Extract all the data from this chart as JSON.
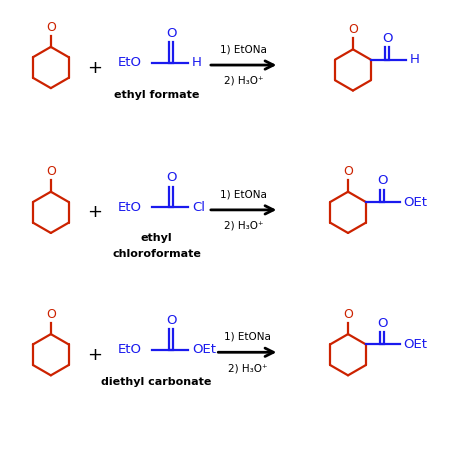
{
  "background_color": "#ffffff",
  "red_color": "#cc2200",
  "blue_color": "#1a1aee",
  "black_color": "#000000",
  "fig_width": 4.74,
  "fig_height": 4.62,
  "dpi": 100,
  "lw": 1.6,
  "ring_scale": 0.42,
  "rows": [
    {
      "y": 8.1,
      "label1": "ethyl formate",
      "label2": null,
      "type": "formate"
    },
    {
      "y": 5.1,
      "label1": "ethyl",
      "label2": "chloroformate",
      "type": "chloroformate"
    },
    {
      "y": 2.1,
      "label1": "diethyl carbonate",
      "label2": null,
      "type": "carbonate"
    }
  ]
}
